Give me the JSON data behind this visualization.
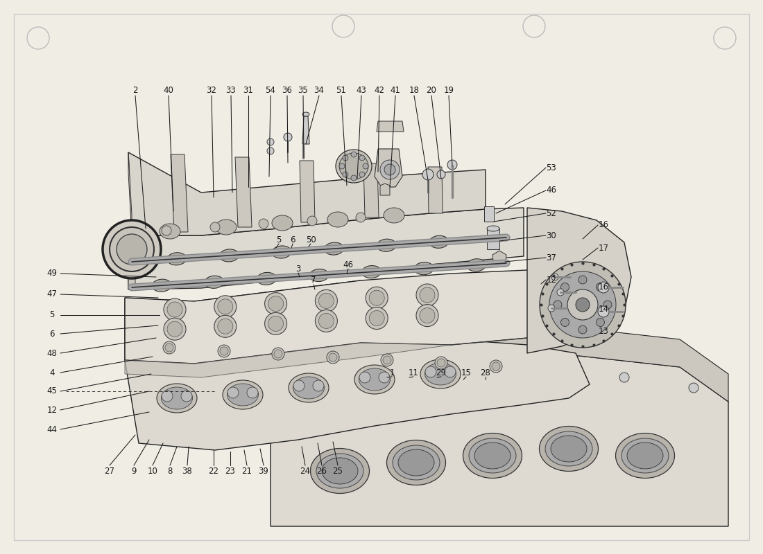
{
  "bg_color": "#f0ede4",
  "line_color": "#1a1a1a",
  "text_color": "#1a1a1a",
  "fig_width": 11.0,
  "fig_height": 8.0,
  "top_labels": [
    [
      "2",
      195,
      118
    ],
    [
      "40",
      243,
      118
    ],
    [
      "32",
      305,
      118
    ],
    [
      "33",
      333,
      118
    ],
    [
      "31",
      358,
      118
    ],
    [
      "54",
      390,
      118
    ],
    [
      "36",
      414,
      118
    ],
    [
      "35",
      437,
      118
    ],
    [
      "34",
      460,
      118
    ],
    [
      "51",
      492,
      118
    ],
    [
      "43",
      521,
      118
    ],
    [
      "42",
      547,
      118
    ],
    [
      "41",
      570,
      118
    ],
    [
      "18",
      597,
      118
    ],
    [
      "20",
      622,
      118
    ],
    [
      "19",
      647,
      118
    ]
  ],
  "right_labels": [
    [
      "53",
      788,
      242
    ],
    [
      "46",
      788,
      275
    ],
    [
      "52",
      788,
      308
    ],
    [
      "30",
      788,
      340
    ],
    [
      "37",
      788,
      372
    ],
    [
      "12",
      788,
      404
    ],
    [
      "16",
      860,
      325
    ],
    [
      "17",
      860,
      355
    ],
    [
      "16",
      860,
      415
    ],
    [
      "14",
      860,
      447
    ],
    [
      "13",
      860,
      478
    ]
  ],
  "left_labels": [
    [
      "49",
      75,
      395
    ],
    [
      "47",
      75,
      425
    ],
    [
      "5",
      75,
      455
    ],
    [
      "6",
      75,
      482
    ],
    [
      "48",
      75,
      510
    ],
    [
      "4",
      75,
      538
    ],
    [
      "45",
      75,
      565
    ],
    [
      "12",
      75,
      592
    ],
    [
      "44",
      75,
      620
    ]
  ],
  "bottom_labels": [
    [
      "27",
      158,
      680
    ],
    [
      "9",
      193,
      680
    ],
    [
      "10",
      220,
      680
    ],
    [
      "8",
      245,
      680
    ],
    [
      "38",
      270,
      680
    ],
    [
      "22",
      308,
      680
    ],
    [
      "23",
      332,
      680
    ],
    [
      "21",
      356,
      680
    ],
    [
      "39",
      380,
      680
    ],
    [
      "24",
      440,
      680
    ],
    [
      "26",
      464,
      680
    ],
    [
      "25",
      487,
      680
    ]
  ],
  "mid_labels": [
    [
      "5",
      402,
      346
    ],
    [
      "6",
      422,
      346
    ],
    [
      "50",
      448,
      346
    ],
    [
      "3",
      430,
      388
    ],
    [
      "7",
      452,
      405
    ],
    [
      "46",
      502,
      382
    ],
    [
      "1",
      565,
      538
    ],
    [
      "11",
      596,
      538
    ],
    [
      "29",
      636,
      538
    ],
    [
      "15",
      672,
      538
    ],
    [
      "28",
      700,
      538
    ]
  ]
}
